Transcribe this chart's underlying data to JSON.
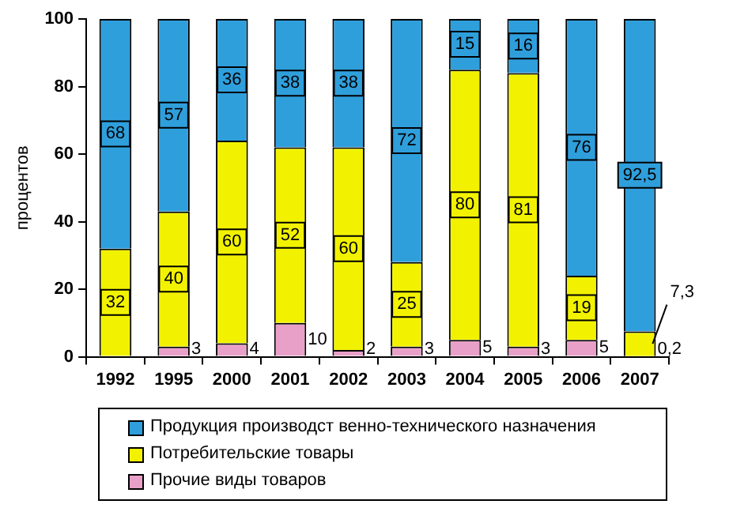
{
  "chart_data": {
    "type": "bar",
    "stacked": true,
    "ylabel": "процентов",
    "categories": [
      "1992",
      "1995",
      "2000",
      "2001",
      "2002",
      "2003",
      "2004",
      "2005",
      "2006",
      "2007"
    ],
    "series": [
      {
        "name": "Прочие виды товаров",
        "color": "#e8a0c8",
        "values": [
          0,
          3,
          4,
          10,
          2,
          3,
          5,
          3,
          5,
          0.2
        ],
        "value_labels": [
          null,
          "3",
          "4",
          "10",
          "2",
          "3",
          "5",
          "3",
          "5",
          "0,2"
        ]
      },
      {
        "name": "Потребительские товары",
        "color": "#f2f200",
        "values": [
          32,
          40,
          60,
          52,
          60,
          25,
          80,
          81,
          19,
          7.3
        ],
        "value_labels": [
          "32",
          "40",
          "60",
          "52",
          "60",
          "25",
          "80",
          "81",
          "19",
          "7,3"
        ]
      },
      {
        "name": "Продукция производст венно-технического назначения",
        "color": "#2f9fdc",
        "values": [
          68,
          57,
          36,
          38,
          38,
          72,
          15,
          16,
          76,
          92.5
        ],
        "value_labels": [
          "68",
          "57",
          "36",
          "38",
          "38",
          "72",
          "15",
          "16",
          "76",
          "92,5"
        ]
      }
    ],
    "ylim": [
      0,
      100
    ],
    "yticks": [
      0,
      20,
      40,
      60,
      80,
      100
    ],
    "grid": false,
    "legend": "bottom"
  }
}
